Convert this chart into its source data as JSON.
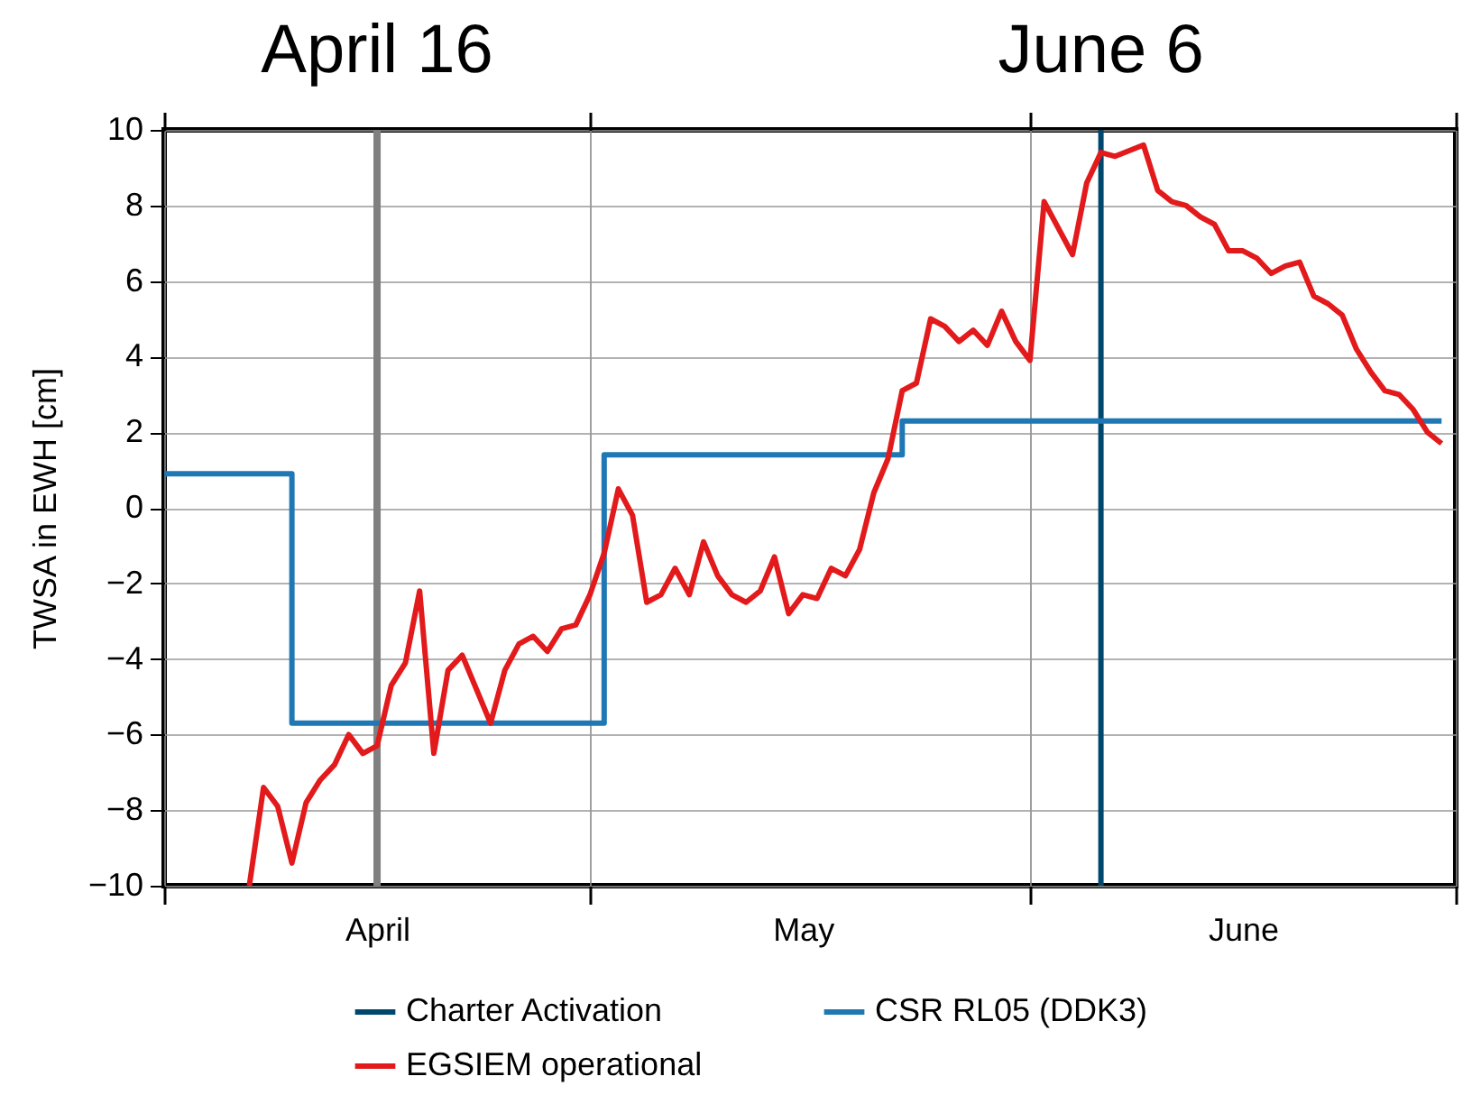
{
  "chart_data": {
    "type": "line",
    "ylabel": "TWSA in EWH [cm]",
    "xlim": [
      "--04-01",
      "--07-01"
    ],
    "xticks": [
      {
        "value": "--04-01",
        "label": null
      },
      {
        "value": "--04-16",
        "label": "April"
      },
      {
        "value": "--05-01",
        "label": null
      },
      {
        "value": "--05-16",
        "label": "May"
      },
      {
        "value": "--06-01",
        "label": null
      },
      {
        "value": "--06-16",
        "label": "June"
      },
      {
        "value": "--07-01",
        "label": null
      }
    ],
    "ylim": [
      -10,
      10
    ],
    "yticks": [
      -10,
      -8,
      -6,
      -4,
      -2,
      0,
      2,
      4,
      6,
      8,
      10
    ],
    "grid": true,
    "legend": "bottom",
    "line_style": "solid",
    "ref_lines": [
      {
        "axis": "x",
        "value": "--04-16",
        "label": "April 16",
        "color": "#808080"
      }
    ],
    "annotations": [
      {
        "text": "June 6",
        "x": "--06-06",
        "y": 10
      }
    ],
    "series": [
      {
        "name": "Charter Activation",
        "type": "line",
        "color": "#00476e",
        "x": [
          "--06-06",
          "--06-06"
        ],
        "values": [
          -10,
          10
        ]
      },
      {
        "name": "CSR RL05 (DDK3)",
        "type": "step",
        "color": "#1f78b4",
        "x": [
          "--04-01",
          "--04-10",
          "--05-02",
          "--05-23",
          "--06-30"
        ],
        "values": [
          0.9,
          -5.7,
          1.4,
          2.3,
          2.3
        ]
      },
      {
        "name": "EGSIEM operational",
        "type": "line",
        "color": "#e31a1c",
        "x": [
          "--04-07",
          "--04-08",
          "--04-09",
          "--04-10",
          "--04-11",
          "--04-12",
          "--04-13",
          "--04-14",
          "--04-15",
          "--04-16",
          "--04-17",
          "--04-18",
          "--04-19",
          "--04-20",
          "--04-21",
          "--04-22",
          "--04-24",
          "--04-25",
          "--04-26",
          "--04-27",
          "--04-28",
          "--04-29",
          "--04-30",
          "--05-01",
          "--05-02",
          "--05-03",
          "--05-04",
          "--05-05",
          "--05-06",
          "--05-07",
          "--05-08",
          "--05-09",
          "--05-10",
          "--05-11",
          "--05-12",
          "--05-13",
          "--05-14",
          "--05-15",
          "--05-16",
          "--05-17",
          "--05-18",
          "--05-19",
          "--05-20",
          "--05-21",
          "--05-22",
          "--05-23",
          "--05-24",
          "--05-25",
          "--05-26",
          "--05-27",
          "--05-28",
          "--05-29",
          "--05-30",
          "--05-31",
          "--06-01",
          "--06-02",
          "--06-04",
          "--06-05",
          "--06-06",
          "--06-07",
          "--06-09",
          "--06-10",
          "--06-11",
          "--06-12",
          "--06-13",
          "--06-14",
          "--06-15",
          "--06-16",
          "--06-17",
          "--06-18",
          "--06-19",
          "--06-20",
          "--06-21",
          "--06-22",
          "--06-23",
          "--06-24",
          "--06-25",
          "--06-26",
          "--06-27",
          "--06-28",
          "--06-29",
          "--06-30"
        ],
        "values": [
          -10,
          -7.4,
          -7.9,
          -9.4,
          -7.8,
          -7.2,
          -6.8,
          -6.0,
          -6.5,
          -6.3,
          -4.7,
          -4.1,
          -2.2,
          -6.5,
          -4.3,
          -3.9,
          -5.7,
          -4.3,
          -3.6,
          -3.4,
          -3.8,
          -3.2,
          -3.1,
          -2.3,
          -1.2,
          0.5,
          -0.2,
          -2.5,
          -2.3,
          -1.6,
          -2.3,
          -0.9,
          -1.8,
          -2.3,
          -2.5,
          -2.2,
          -1.3,
          -2.8,
          -2.3,
          -2.4,
          -1.6,
          -1.8,
          -1.1,
          0.4,
          1.3,
          3.1,
          3.3,
          5.0,
          4.8,
          4.4,
          4.7,
          4.3,
          5.2,
          4.4,
          3.9,
          8.1,
          6.7,
          8.6,
          9.4,
          9.3,
          9.6,
          8.4,
          8.1,
          8.0,
          7.7,
          7.5,
          6.8,
          6.8,
          6.6,
          6.2,
          6.4,
          6.5,
          5.6,
          5.4,
          5.1,
          4.2,
          3.6,
          3.1,
          3.0,
          2.6,
          2.0,
          1.7
        ]
      }
    ]
  }
}
